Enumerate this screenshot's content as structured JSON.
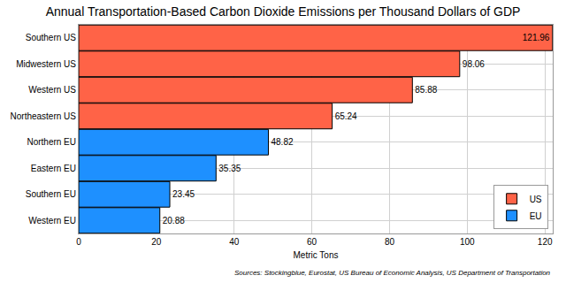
{
  "chart_data": {
    "type": "bar",
    "orientation": "horizontal",
    "title": "Annual Transportation-Based Carbon Dioxide Emissions per Thousand Dollars of GDP",
    "xlabel": "Metric Tons",
    "annotations": [
      "Sources: Stockingblue, Eurostat, US Bureau of Economic Analysis, US Department of Transportation"
    ],
    "categories": [
      "Southern US",
      "Midwestern US",
      "Western US",
      "Northeastern US",
      "Northern EU",
      "Eastern EU",
      "Southern EU",
      "Western EU"
    ],
    "series": [
      {
        "name": "US",
        "color": "#ff6347",
        "values": [
          121.96,
          98.06,
          85.88,
          65.24,
          null,
          null,
          null,
          null
        ]
      },
      {
        "name": "EU",
        "color": "#1e90ff",
        "values": [
          null,
          null,
          null,
          null,
          48.82,
          35.35,
          23.45,
          20.88
        ]
      }
    ],
    "xlim": [
      0,
      122
    ],
    "xticks": [
      0,
      20,
      40,
      60,
      80,
      100,
      120
    ],
    "grid": true,
    "legend": "lower right",
    "data_labels": true
  }
}
